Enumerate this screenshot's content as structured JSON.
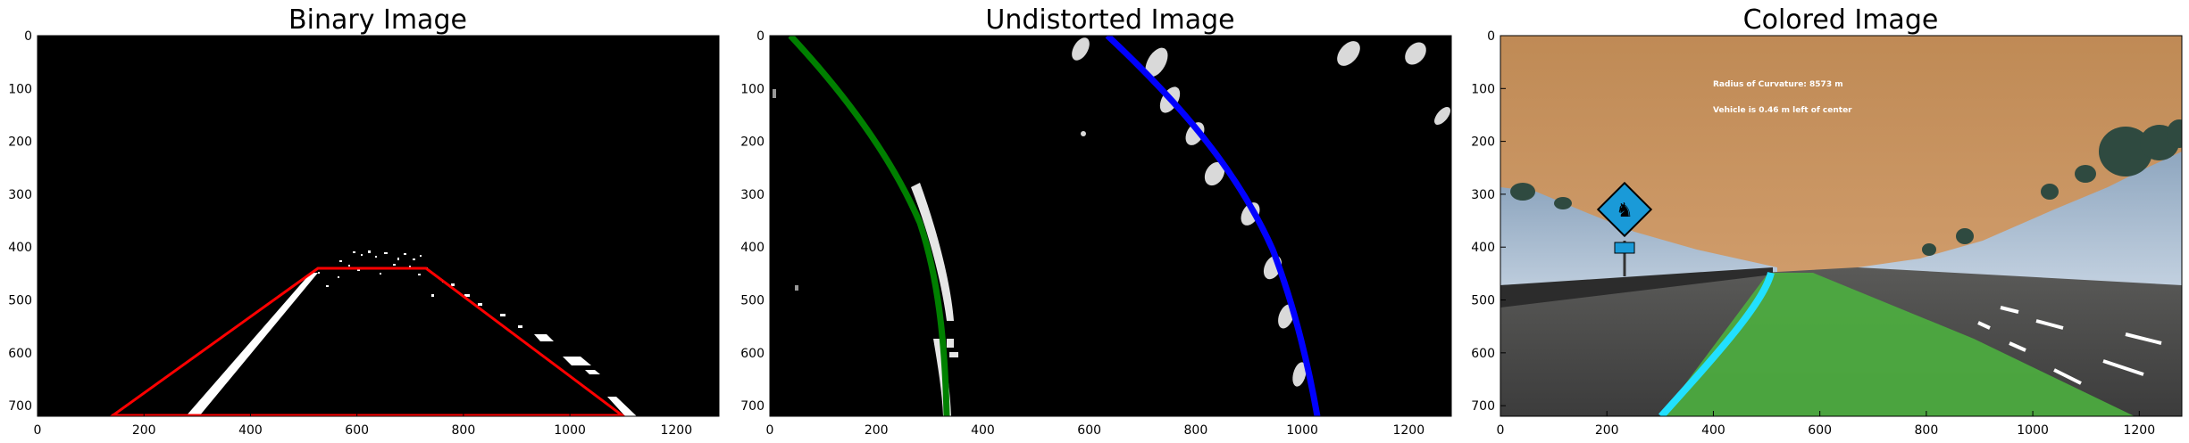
{
  "figure": {
    "background": "#ffffff",
    "panels": [
      {
        "id": "binary",
        "title": "Binary Image",
        "x_ticks": [
          "0",
          "200",
          "400",
          "600",
          "800",
          "1000",
          "1200"
        ],
        "y_ticks": [
          "0",
          "100",
          "200",
          "300",
          "400",
          "500",
          "600",
          "700"
        ],
        "x_tick_values": [
          0,
          200,
          400,
          600,
          800,
          1000,
          1200
        ],
        "y_tick_values": [
          0,
          100,
          200,
          300,
          400,
          500,
          600,
          700
        ],
        "xlim": [
          0,
          1280
        ],
        "ylim": [
          0,
          720
        ],
        "colors": {
          "background": "#000000",
          "lane_pixels": "#ffffff",
          "region": "#ff0000"
        }
      },
      {
        "id": "undistorted",
        "title": "Undistorted Image",
        "x_ticks": [
          "0",
          "200",
          "400",
          "600",
          "800",
          "1000",
          "1200"
        ],
        "y_ticks": [
          "0",
          "100",
          "200",
          "300",
          "400",
          "500",
          "600",
          "700"
        ],
        "x_tick_values": [
          0,
          200,
          400,
          600,
          800,
          1000,
          1200
        ],
        "y_tick_values": [
          0,
          100,
          200,
          300,
          400,
          500,
          600,
          700
        ],
        "xlim": [
          0,
          1280
        ],
        "ylim": [
          0,
          720
        ],
        "colors": {
          "background": "#000000",
          "left_fit": "#008000",
          "right_fit": "#0000ff",
          "lane_pixels": "#ffffff"
        }
      },
      {
        "id": "colored",
        "title": "Colored Image",
        "x_ticks": [
          "0",
          "200",
          "400",
          "600",
          "800",
          "1000",
          "1200"
        ],
        "y_ticks": [
          "0",
          "100",
          "200",
          "300",
          "400",
          "500",
          "600",
          "700"
        ],
        "x_tick_values": [
          0,
          200,
          400,
          600,
          800,
          1000,
          1200
        ],
        "y_tick_values": [
          0,
          100,
          200,
          300,
          400,
          500,
          600,
          700
        ],
        "xlim": [
          0,
          1280
        ],
        "ylim": [
          0,
          720
        ],
        "overlay_text": {
          "curvature": "Radius of Curvature: 8573 m",
          "offset": "Vehicle is 0.46 m left of center"
        },
        "colors": {
          "sky": "#c9935d",
          "lane_fill": "#4caf3f",
          "left_line": "#22e0ff",
          "road": "#4a4a4a",
          "sign": "#1a9ad8"
        }
      }
    ]
  }
}
